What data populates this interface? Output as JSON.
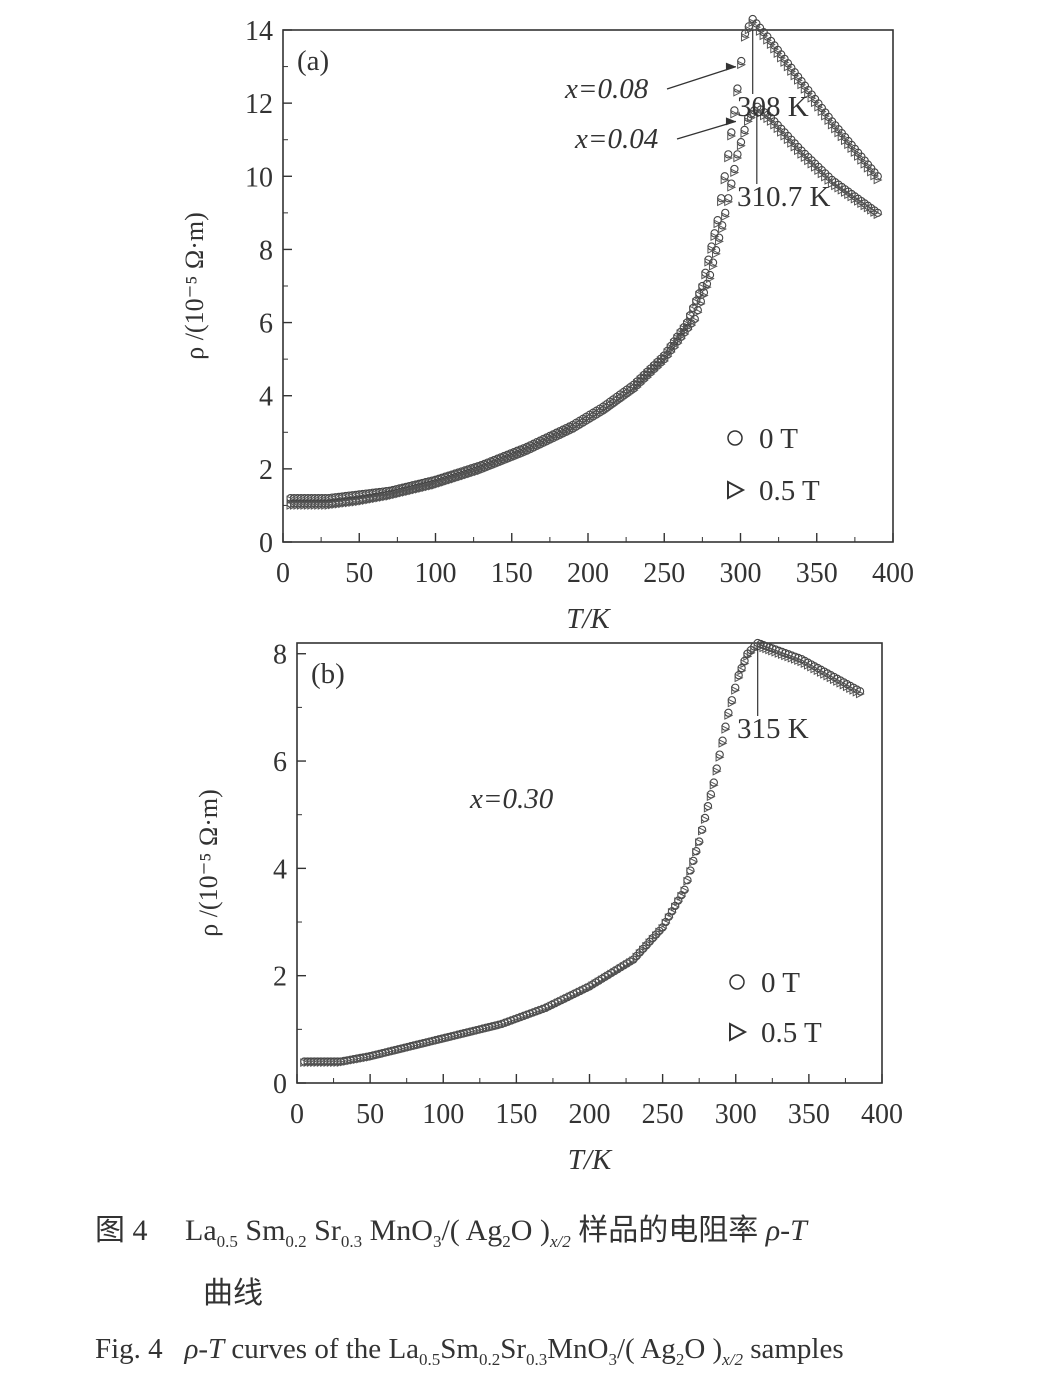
{
  "figure": {
    "caption_cn": {
      "label": "图 4",
      "formula_la": "La",
      "sub_la": "0.5",
      "formula_sm": "Sm",
      "sub_sm": "0.2",
      "formula_sr": "Sr",
      "sub_sr": "0.3",
      "formula_mno": "MnO",
      "sub_o3": "3",
      "formula_ag": "/( Ag",
      "sub_ag2": "2",
      "formula_o": "O )",
      "sub_x2": "x/2",
      "text_after": " 样品的电阻率 ",
      "rho_t": "ρ-T",
      "line2": "曲线"
    },
    "caption_en": {
      "label": "Fig. 4",
      "rho_t": "ρ-T",
      "text_before": " curves of the ",
      "formula_la": "La",
      "sub_la": "0.5",
      "formula_sm": "Sm",
      "sub_sm": "0.2",
      "formula_sr": "Sr",
      "sub_sr": "0.3",
      "formula_mno": "MnO",
      "sub_o3": "3",
      "formula_ag": "/( Ag",
      "sub_ag2": "2",
      "formula_o": "O )",
      "sub_x2": "x/2",
      "text_after": " samples"
    }
  },
  "chart_data": [
    {
      "type": "scatter",
      "panel_label": "(a)",
      "xlabel": "T/K",
      "ylabel": "ρ /(10⁻⁵ Ω·m)",
      "xlim": [
        0,
        400
      ],
      "ylim": [
        0,
        14
      ],
      "xticks": [
        0,
        50,
        100,
        150,
        200,
        250,
        300,
        350,
        400
      ],
      "yticks": [
        0,
        2,
        4,
        6,
        8,
        10,
        12,
        14
      ],
      "grid": false,
      "legend": {
        "placement": "bottom-right",
        "entries": [
          "0 T",
          "0.5 T"
        ]
      },
      "annotations": [
        {
          "text": "x=0.08",
          "points_to": [
            297,
            13.0
          ]
        },
        {
          "text": "x=0.04",
          "points_to": [
            297,
            11.5
          ]
        },
        {
          "text": "308 K",
          "x": 308,
          "y": 12.8
        },
        {
          "text": "310.7 K",
          "x": 310.7,
          "y": 10.0
        }
      ],
      "series": [
        {
          "name": "0 T",
          "marker": "circle",
          "x_value": 0.08,
          "x": [
            5,
            30,
            50,
            70,
            100,
            130,
            160,
            190,
            210,
            230,
            250,
            265,
            275,
            285,
            292,
            298,
            303,
            308,
            320,
            340,
            360,
            390
          ],
          "y": [
            1.2,
            1.2,
            1.3,
            1.4,
            1.7,
            2.1,
            2.6,
            3.2,
            3.7,
            4.3,
            5.1,
            6.0,
            7.0,
            8.8,
            10.6,
            12.4,
            13.9,
            14.3,
            13.7,
            12.6,
            11.5,
            10.0
          ]
        },
        {
          "name": "0.5 T",
          "marker": "triangle",
          "x_value": 0.08,
          "x": [
            5,
            30,
            50,
            70,
            100,
            130,
            160,
            190,
            210,
            230,
            250,
            265,
            275,
            285,
            292,
            298,
            303,
            308,
            320,
            340,
            360,
            390
          ],
          "y": [
            1.15,
            1.15,
            1.25,
            1.35,
            1.65,
            2.05,
            2.55,
            3.15,
            3.65,
            4.25,
            5.05,
            5.95,
            6.95,
            8.7,
            10.5,
            12.3,
            13.8,
            14.2,
            13.6,
            12.5,
            11.4,
            9.9
          ]
        },
        {
          "name": "0 T",
          "marker": "circle",
          "x_value": 0.04,
          "x": [
            5,
            30,
            50,
            70,
            100,
            130,
            160,
            190,
            210,
            230,
            250,
            270,
            280,
            290,
            298,
            305,
            311,
            320,
            340,
            360,
            390
          ],
          "y": [
            1.05,
            1.05,
            1.15,
            1.3,
            1.6,
            2.0,
            2.5,
            3.1,
            3.6,
            4.2,
            5.0,
            6.1,
            7.3,
            9.0,
            10.6,
            11.6,
            11.9,
            11.6,
            10.7,
            9.9,
            9.0
          ]
        },
        {
          "name": "0.5 T",
          "marker": "triangle",
          "x_value": 0.04,
          "x": [
            5,
            30,
            50,
            70,
            100,
            130,
            160,
            190,
            210,
            230,
            250,
            270,
            280,
            290,
            298,
            305,
            311,
            320,
            340,
            360,
            390
          ],
          "y": [
            1.0,
            1.0,
            1.1,
            1.25,
            1.55,
            1.95,
            2.45,
            3.05,
            3.55,
            4.15,
            4.95,
            6.05,
            7.2,
            8.9,
            10.5,
            11.5,
            11.8,
            11.5,
            10.6,
            9.8,
            8.95
          ]
        }
      ]
    },
    {
      "type": "scatter",
      "panel_label": "(b)",
      "xlabel": "T/K",
      "ylabel": "ρ /(10⁻⁵ Ω·m)",
      "xlim": [
        0,
        400
      ],
      "ylim": [
        0,
        8.2
      ],
      "xticks": [
        0,
        50,
        100,
        150,
        200,
        250,
        300,
        350,
        400
      ],
      "yticks": [
        0,
        2,
        4,
        6,
        8
      ],
      "grid": false,
      "legend": {
        "placement": "bottom-right",
        "entries": [
          "0 T",
          "0.5 T"
        ]
      },
      "annotations": [
        {
          "text": "x=0.30",
          "x": 150,
          "y": 5.4
        },
        {
          "text": "315 K",
          "x": 315,
          "y": 7.0
        }
      ],
      "series": [
        {
          "name": "0 T",
          "marker": "circle",
          "x_value": 0.3,
          "x": [
            5,
            30,
            50,
            80,
            110,
            140,
            170,
            200,
            230,
            250,
            265,
            275,
            285,
            295,
            302,
            308,
            315,
            325,
            345,
            365,
            385
          ],
          "y": [
            0.4,
            0.4,
            0.5,
            0.7,
            0.9,
            1.1,
            1.4,
            1.8,
            2.3,
            2.9,
            3.6,
            4.5,
            5.6,
            6.9,
            7.6,
            8.0,
            8.2,
            8.1,
            7.9,
            7.6,
            7.3
          ]
        },
        {
          "name": "0.5 T",
          "marker": "triangle",
          "x_value": 0.3,
          "x": [
            5,
            30,
            50,
            80,
            110,
            140,
            170,
            200,
            230,
            250,
            265,
            275,
            285,
            295,
            302,
            308,
            315,
            325,
            345,
            365,
            385
          ],
          "y": [
            0.38,
            0.38,
            0.48,
            0.68,
            0.88,
            1.08,
            1.38,
            1.78,
            2.28,
            2.88,
            3.58,
            4.48,
            5.55,
            6.85,
            7.55,
            7.95,
            8.15,
            8.05,
            7.85,
            7.55,
            7.25
          ]
        }
      ]
    }
  ]
}
